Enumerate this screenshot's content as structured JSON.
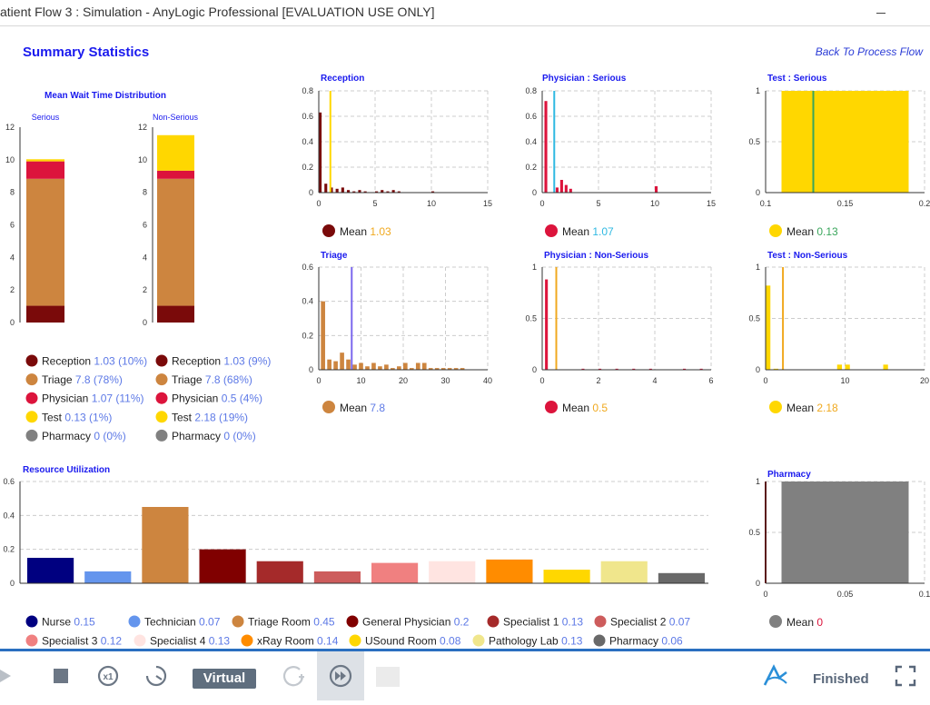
{
  "window": {
    "title": "atient Flow 3 : Simulation - AnyLogic Professional [EVALUATION USE ONLY]"
  },
  "page": {
    "heading": "Summary Statistics",
    "back_link": "Back To Process Flow"
  },
  "colors": {
    "reception": "#7a0a0a",
    "triage": "#cd853f",
    "physician": "#dc143c",
    "test": "#ffd700",
    "pharmacy": "#808080",
    "mean_blue": "#5d79e6",
    "mean_orange": "#f0a91f",
    "mean_cyan": "#2fb9e2",
    "mean_green": "#3aa65c",
    "title_blue": "#1a1aee"
  },
  "mean_wait": {
    "title": "Mean Wait Time Distribution",
    "serious_label": "Serious",
    "nonserious_label": "Non-Serious",
    "yticks": [
      "0",
      "2",
      "4",
      "6",
      "8",
      "10",
      "12"
    ],
    "ymax": 12,
    "serious": [
      {
        "key": "reception",
        "value": 1.03
      },
      {
        "key": "triage",
        "value": 7.8
      },
      {
        "key": "physician",
        "value": 1.07
      },
      {
        "key": "test",
        "value": 0.13
      },
      {
        "key": "pharmacy",
        "value": 0
      }
    ],
    "nonserious": [
      {
        "key": "reception",
        "value": 1.03
      },
      {
        "key": "triage",
        "value": 7.8
      },
      {
        "key": "physician",
        "value": 0.5
      },
      {
        "key": "test",
        "value": 2.18
      },
      {
        "key": "pharmacy",
        "value": 0
      }
    ],
    "legend_serious": [
      {
        "label": "Reception",
        "value": "1.03 (10%)",
        "color": "#7a0a0a"
      },
      {
        "label": "Triage",
        "value": "7.8 (78%)",
        "color": "#cd853f"
      },
      {
        "label": "Physician",
        "value": "1.07 (11%)",
        "color": "#dc143c"
      },
      {
        "label": "Test",
        "value": "0.13 (1%)",
        "color": "#ffd700"
      },
      {
        "label": "Pharmacy",
        "value": "0 (0%)",
        "color": "#808080"
      }
    ],
    "legend_nonserious": [
      {
        "label": "Reception",
        "value": "1.03 (9%)",
        "color": "#7a0a0a"
      },
      {
        "label": "Triage",
        "value": "7.8 (68%)",
        "color": "#cd853f"
      },
      {
        "label": "Physician",
        "value": "0.5 (4%)",
        "color": "#dc143c"
      },
      {
        "label": "Test",
        "value": "2.18 (19%)",
        "color": "#ffd700"
      },
      {
        "label": "Pharmacy",
        "value": "0 (0%)",
        "color": "#808080"
      }
    ]
  },
  "chart_data": [
    {
      "type": "bar",
      "title": "Reception",
      "xlim": [
        0,
        15
      ],
      "ylim": [
        0,
        0.8
      ],
      "xticks": [
        "0",
        "5",
        "10",
        "15"
      ],
      "yticks": [
        "0",
        "0.2",
        "0.4",
        "0.6",
        "0.8"
      ],
      "bar_color": "#7a0a0a",
      "bins": [
        [
          0,
          0.25,
          0.63
        ],
        [
          0.5,
          0.75,
          0.07
        ],
        [
          1,
          1.25,
          0.04
        ],
        [
          1.5,
          1.75,
          0.03
        ],
        [
          2,
          2.25,
          0.04
        ],
        [
          2.5,
          2.75,
          0.02
        ],
        [
          3,
          3.25,
          0.01
        ],
        [
          3.5,
          3.75,
          0.02
        ],
        [
          4,
          4.25,
          0.01
        ],
        [
          5,
          5.25,
          0.01
        ],
        [
          5.5,
          5.75,
          0.02
        ],
        [
          6,
          6.25,
          0.01
        ],
        [
          6.5,
          6.75,
          0.02
        ],
        [
          7,
          7.25,
          0.01
        ],
        [
          10,
          10.25,
          0.01
        ]
      ],
      "mean": 1.03,
      "mean_color": "#ffd700",
      "legend_label": "Mean",
      "mean_text": "1.03",
      "mean_text_color": "#f0a91f"
    },
    {
      "type": "bar",
      "title": "Physician : Serious",
      "xlim": [
        0,
        15
      ],
      "ylim": [
        0,
        0.8
      ],
      "xticks": [
        "0",
        "5",
        "10",
        "15"
      ],
      "yticks": [
        "0",
        "0.2",
        "0.4",
        "0.6",
        "0.8"
      ],
      "bar_color": "#dc143c",
      "bins": [
        [
          0.2,
          0.45,
          0.72
        ],
        [
          1.2,
          1.45,
          0.04
        ],
        [
          1.6,
          1.85,
          0.1
        ],
        [
          2,
          2.25,
          0.06
        ],
        [
          2.4,
          2.65,
          0.03
        ],
        [
          10,
          10.25,
          0.05
        ]
      ],
      "mean": 1.07,
      "mean_color": "#2fb9e2",
      "legend_label": "Mean",
      "mean_text": "1.07",
      "mean_text_color": "#2fb9e2"
    },
    {
      "type": "bar",
      "title": "Test : Serious",
      "xlim": [
        0.1,
        0.2
      ],
      "ylim": [
        0,
        1
      ],
      "xticks": [
        "0.1",
        "0.15",
        "0.2"
      ],
      "yticks": [
        "0",
        "0.5",
        "1"
      ],
      "bar_color": "#ffd700",
      "bins": [
        [
          0.11,
          0.19,
          1
        ]
      ],
      "mean": 0.13,
      "mean_color": "#3aa65c",
      "legend_label": "Mean",
      "mean_text": "0.13",
      "mean_text_color": "#3aa65c"
    },
    {
      "type": "bar",
      "title": "Triage",
      "xlim": [
        0,
        40
      ],
      "ylim": [
        0,
        0.6
      ],
      "xticks": [
        "0",
        "10",
        "20",
        "30",
        "40"
      ],
      "yticks": [
        "0",
        "0.2",
        "0.4",
        "0.6"
      ],
      "bar_color": "#cd853f",
      "bins": [
        [
          0.5,
          1.5,
          0.4
        ],
        [
          2,
          3,
          0.06
        ],
        [
          3.5,
          4.5,
          0.05
        ],
        [
          5,
          6,
          0.1
        ],
        [
          6.5,
          7.5,
          0.06
        ],
        [
          8,
          9,
          0.03
        ],
        [
          9.5,
          10.5,
          0.04
        ],
        [
          11,
          12,
          0.02
        ],
        [
          12.5,
          13.5,
          0.04
        ],
        [
          14,
          15,
          0.02
        ],
        [
          15.5,
          16.5,
          0.03
        ],
        [
          17,
          18,
          0.01
        ],
        [
          18.5,
          19.5,
          0.02
        ],
        [
          20,
          21,
          0.04
        ],
        [
          21.5,
          22.5,
          0.01
        ],
        [
          23,
          24,
          0.04
        ],
        [
          24.5,
          25.5,
          0.04
        ],
        [
          26,
          27,
          0.01
        ],
        [
          27.5,
          28.5,
          0.01
        ],
        [
          29,
          30,
          0.01
        ],
        [
          30.5,
          31.5,
          0.01
        ],
        [
          32,
          33,
          0.01
        ],
        [
          33.5,
          34.5,
          0.01
        ]
      ],
      "mean": 7.8,
      "mean_color": "#7b68ee",
      "legend_label": "Mean",
      "mean_text": "7.8",
      "mean_text_color": "#5d79e6"
    },
    {
      "type": "bar",
      "title": "Physician : Non-Serious",
      "xlim": [
        0,
        6
      ],
      "ylim": [
        0,
        1
      ],
      "xticks": [
        "0",
        "2",
        "4",
        "6"
      ],
      "yticks": [
        "0",
        "0.5",
        "1"
      ],
      "bar_color": "#dc143c",
      "bins": [
        [
          0.1,
          0.2,
          0.88
        ],
        [
          1.4,
          1.5,
          0.01
        ],
        [
          2,
          2.1,
          0.01
        ],
        [
          2.6,
          2.7,
          0.01
        ],
        [
          3.2,
          3.3,
          0.01
        ],
        [
          3.8,
          3.9,
          0.01
        ],
        [
          5,
          5.1,
          0.01
        ],
        [
          5.6,
          5.7,
          0.01
        ]
      ],
      "mean": 0.5,
      "mean_color": "#f0a91f",
      "legend_label": "Mean",
      "mean_text": "0.5",
      "mean_text_color": "#f0a91f"
    },
    {
      "type": "bar",
      "title": "Test : Non-Serious",
      "xlim": [
        0,
        20
      ],
      "ylim": [
        0,
        1
      ],
      "xticks": [
        "0",
        "10",
        "20"
      ],
      "yticks": [
        "0",
        "0.5",
        "1"
      ],
      "bar_color": "#ffd700",
      "bins": [
        [
          0,
          0.6,
          0.82
        ],
        [
          1,
          1.6,
          0.01
        ],
        [
          9,
          9.6,
          0.05
        ],
        [
          10,
          10.6,
          0.05
        ],
        [
          14.8,
          15.4,
          0.05
        ]
      ],
      "mean": 2.18,
      "mean_color": "#f0a91f",
      "legend_label": "Mean",
      "mean_text": "2.18",
      "mean_text_color": "#f0a91f"
    },
    {
      "type": "bar",
      "title": "Resource Utilization",
      "ylim": [
        0,
        0.6
      ],
      "yticks": [
        "0",
        "0.2",
        "0.4",
        "0.6"
      ],
      "categories": [
        "Nurse",
        "Technician",
        "Triage Room",
        "General Physician",
        "Specialist 1",
        "Specialist 2",
        "Specialist 3",
        "Specialist 4",
        "xRay Room",
        "USound Room",
        "Pathology Lab",
        "Pharmacy"
      ],
      "values": [
        0.15,
        0.07,
        0.45,
        0.2,
        0.13,
        0.07,
        0.12,
        0.13,
        0.14,
        0.08,
        0.13,
        0.06
      ],
      "value_labels": [
        "0.15",
        "0.07",
        "0.45",
        "0.2",
        "0.13",
        "0.07",
        "0.12",
        "0.13",
        "0.14",
        "0.08",
        "0.13",
        "0.06"
      ],
      "colors": [
        "#000080",
        "#6495ed",
        "#cd853f",
        "#800000",
        "#a52a2a",
        "#cd5c5c",
        "#f08080",
        "#ffe4e1",
        "#ff8c00",
        "#ffd700",
        "#f0e68c",
        "#696969"
      ]
    },
    {
      "type": "bar",
      "title": "Pharmacy",
      "xlim": [
        0,
        0.1
      ],
      "ylim": [
        0,
        1
      ],
      "xticks": [
        "0",
        "0.05",
        "0.1"
      ],
      "yticks": [
        "0",
        "0.5",
        "1"
      ],
      "bar_color": "#808080",
      "bins": [
        [
          0.01,
          0.09,
          1
        ]
      ],
      "mean": 0,
      "mean_color": "#800000",
      "legend_label": "Mean",
      "mean_text": "0",
      "mean_text_color": "#dc143c"
    }
  ],
  "toolbar": {
    "virtual_label": "Virtual",
    "status": "Finished"
  }
}
